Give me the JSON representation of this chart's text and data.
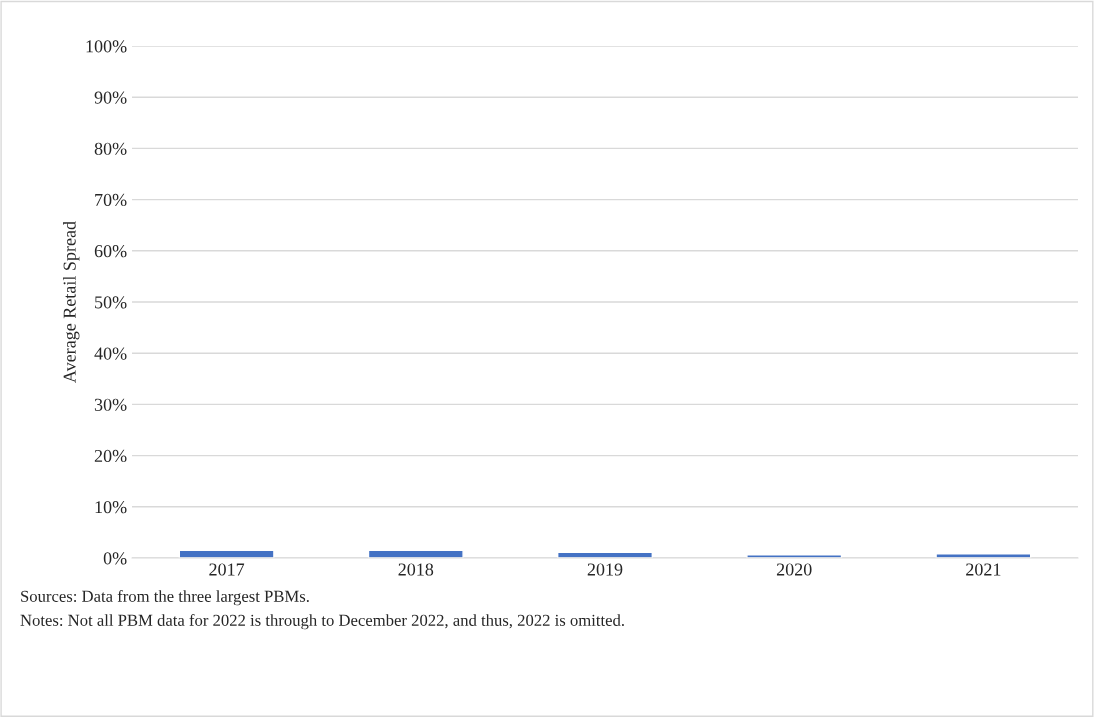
{
  "chart_data": {
    "type": "bar",
    "ylabel": "Average Retail Spread",
    "categories": [
      "2017",
      "2018",
      "2019",
      "2020",
      "2021"
    ],
    "values": [
      1.5,
      1.5,
      1.1,
      0.6,
      0.8
    ],
    "color": "#4472c4",
    "ylim": [
      0,
      100
    ],
    "yticks": [
      {
        "value": 0,
        "label": "0%"
      },
      {
        "value": 10,
        "label": "10%"
      },
      {
        "value": 20,
        "label": "20%"
      },
      {
        "value": 30,
        "label": "30%"
      },
      {
        "value": 40,
        "label": "40%"
      },
      {
        "value": 50,
        "label": "50%"
      },
      {
        "value": 60,
        "label": "60%"
      },
      {
        "value": 70,
        "label": "70%"
      },
      {
        "value": 80,
        "label": "80%"
      },
      {
        "value": 90,
        "label": "90%"
      },
      {
        "value": 100,
        "label": "100%"
      }
    ],
    "grid": "y",
    "annotations": [
      "Sources: Data from the three largest PBMs.",
      "Notes: Not all PBM data for 2022 is through to December 2022, and thus, 2022 is omitted."
    ]
  }
}
